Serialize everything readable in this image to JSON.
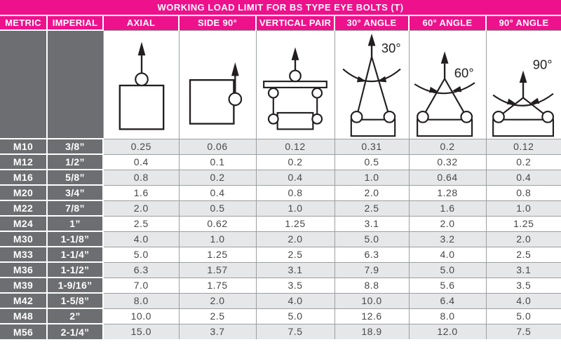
{
  "title": "WORKING LOAD LIMIT FOR BS TYPE EYE BOLTS (T)",
  "columns": [
    "METRIC",
    "IMPERIAL",
    "AXIAL",
    "SIDE 90°",
    "VERTICAL PAIR",
    "30° ANGLE",
    "60° ANGLE",
    "90° ANGLE"
  ],
  "diagrams": {
    "axial": {
      "name": "axial-load-diagram"
    },
    "side90": {
      "name": "side-90-load-diagram"
    },
    "vertical_pair": {
      "name": "vertical-pair-load-diagram"
    },
    "angle30": {
      "name": "30-degree-sling-diagram",
      "label": "30°"
    },
    "angle60": {
      "name": "60-degree-sling-diagram",
      "label": "60°"
    },
    "angle90": {
      "name": "90-degree-sling-diagram",
      "label": "90°"
    }
  },
  "colors": {
    "header_pink": "#EE118C",
    "size_column_gray": "#6D6E71",
    "row_shade_gray": "#E6E7E8",
    "border_gray": "#9D9EA0",
    "line_dark": "#231F20"
  },
  "chart_data": {
    "type": "table",
    "title": "WORKING LOAD LIMIT FOR BS TYPE EYE BOLTS (T)",
    "columns": [
      "METRIC",
      "IMPERIAL",
      "AXIAL",
      "SIDE 90°",
      "VERTICAL PAIR",
      "30° ANGLE",
      "60° ANGLE",
      "90° ANGLE"
    ],
    "rows": [
      [
        "M10",
        "3/8”",
        "0.25",
        "0.06",
        "0.12",
        "0.31",
        "0.2",
        "0.12"
      ],
      [
        "M12",
        "1/2”",
        "0.4",
        "0.1",
        "0.2",
        "0.5",
        "0.32",
        "0.2"
      ],
      [
        "M16",
        "5/8”",
        "0.8",
        "0.2",
        "0.4",
        "1.0",
        "0.64",
        "0.4"
      ],
      [
        "M20",
        "3/4”",
        "1.6",
        "0.4",
        "0.8",
        "2.0",
        "1.28",
        "0.8"
      ],
      [
        "M22",
        "7/8”",
        "2.0",
        "0.5",
        "1.0",
        "2.5",
        "1.6",
        "1.0"
      ],
      [
        "M24",
        "1”",
        "2.5",
        "0.62",
        "1.25",
        "3.1",
        "2.0",
        "1.25"
      ],
      [
        "M30",
        "1-1/8”",
        "4.0",
        "1.0",
        "2.0",
        "5.0",
        "3.2",
        "2.0"
      ],
      [
        "M33",
        "1-1/4”",
        "5.0",
        "1.25",
        "2.5",
        "6.3",
        "4.0",
        "2.5"
      ],
      [
        "M36",
        "1-1/2”",
        "6.3",
        "1.57",
        "3.1",
        "7.9",
        "5.0",
        "3.1"
      ],
      [
        "M39",
        "1-9/16”",
        "7.0",
        "1.75",
        "3.5",
        "8.8",
        "5.6",
        "3.5"
      ],
      [
        "M42",
        "1-5/8”",
        "8.0",
        "2.0",
        "4.0",
        "10.0",
        "6.4",
        "4.0"
      ],
      [
        "M48",
        "2”",
        "10.0",
        "2.5",
        "5.0",
        "12.6",
        "8.0",
        "5.0"
      ],
      [
        "M56",
        "2-1/4”",
        "15.0",
        "3.7",
        "7.5",
        "18.9",
        "12.0",
        "7.5"
      ]
    ]
  }
}
